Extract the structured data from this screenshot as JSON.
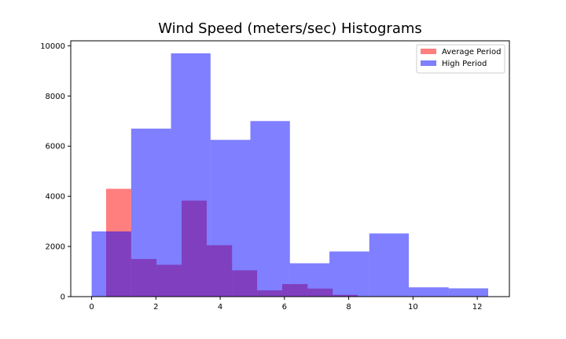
{
  "chart_data": {
    "type": "bar",
    "title": "Wind Speed (meters/sec) Histograms",
    "xlabel": "",
    "ylabel": "",
    "xlim": [
      -0.65,
      13.0
    ],
    "ylim": [
      0,
      10200
    ],
    "x_ticks": [
      0,
      2,
      4,
      6,
      8,
      10,
      12
    ],
    "y_ticks": [
      0,
      2000,
      4000,
      6000,
      8000,
      10000
    ],
    "grid": false,
    "legend_position": "top-right",
    "series": [
      {
        "name": "Average Period",
        "color": "#ff0000",
        "opacity": 0.5,
        "bins": [
          {
            "x0": 0.45,
            "x1": 1.23,
            "value": 4300
          },
          {
            "x0": 1.23,
            "x1": 2.02,
            "value": 1500
          },
          {
            "x0": 2.02,
            "x1": 2.8,
            "value": 1270
          },
          {
            "x0": 2.8,
            "x1": 3.58,
            "value": 3830
          },
          {
            "x0": 3.58,
            "x1": 4.37,
            "value": 2050
          },
          {
            "x0": 4.37,
            "x1": 5.15,
            "value": 1050
          },
          {
            "x0": 5.15,
            "x1": 5.93,
            "value": 250
          },
          {
            "x0": 5.93,
            "x1": 6.72,
            "value": 500
          },
          {
            "x0": 6.72,
            "x1": 7.5,
            "value": 320
          },
          {
            "x0": 7.5,
            "x1": 8.28,
            "value": 70
          }
        ]
      },
      {
        "name": "High Period",
        "color": "#0000ff",
        "opacity": 0.5,
        "bins": [
          {
            "x0": 0.0,
            "x1": 1.23,
            "value": 2600
          },
          {
            "x0": 1.23,
            "x1": 2.47,
            "value": 6700
          },
          {
            "x0": 2.47,
            "x1": 3.7,
            "value": 9700
          },
          {
            "x0": 3.7,
            "x1": 4.94,
            "value": 6250
          },
          {
            "x0": 4.94,
            "x1": 6.17,
            "value": 7000
          },
          {
            "x0": 6.17,
            "x1": 7.4,
            "value": 1330
          },
          {
            "x0": 7.4,
            "x1": 8.64,
            "value": 1800
          },
          {
            "x0": 8.64,
            "x1": 9.87,
            "value": 2520
          },
          {
            "x0": 9.87,
            "x1": 11.11,
            "value": 370
          },
          {
            "x0": 11.11,
            "x1": 12.34,
            "value": 330
          }
        ]
      }
    ]
  }
}
